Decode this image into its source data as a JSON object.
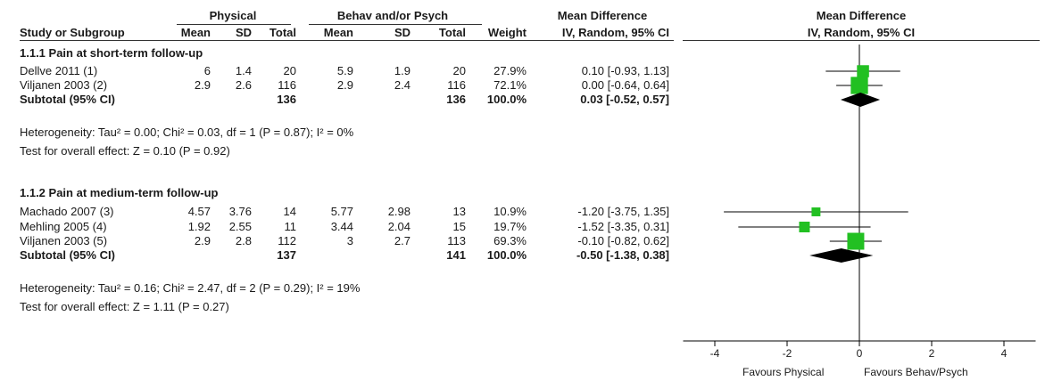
{
  "header": {
    "group1": "Physical",
    "group2": "Behav and/or Psych",
    "md_title": "Mean Difference",
    "plot_title": "Mean Difference",
    "col_study": "Study or Subgroup",
    "col_mean1": "Mean",
    "col_sd1": "SD",
    "col_total1": "Total",
    "col_mean2": "Mean",
    "col_sd2": "SD",
    "col_total2": "Total",
    "col_weight": "Weight",
    "col_ci": "IV, Random, 95% CI",
    "plot_ci": "IV, Random, 95% CI"
  },
  "rows": [
    {
      "kind": "group",
      "study": "1.1.1 Pain at short-term follow-up"
    },
    {
      "kind": "study",
      "study": "Dellve 2011 (1)",
      "m1": "6",
      "sd1": "1.4",
      "n1": "20",
      "m2": "5.9",
      "sd2": "1.9",
      "n2": "20",
      "w": "27.9%",
      "ci": "0.10 [-0.93, 1.13]"
    },
    {
      "kind": "study",
      "study": "Viljanen 2003 (2)",
      "m1": "2.9",
      "sd1": "2.6",
      "n1": "116",
      "m2": "2.9",
      "sd2": "2.4",
      "n2": "116",
      "w": "72.1%",
      "ci": "0.00 [-0.64, 0.64]"
    },
    {
      "kind": "subtotal",
      "study": "Subtotal (95% CI)",
      "m1": "",
      "sd1": "",
      "n1": "136",
      "m2": "",
      "sd2": "",
      "n2": "136",
      "w": "100.0%",
      "ci": "0.03 [-0.52, 0.57]"
    },
    {
      "kind": "note",
      "study": "Heterogeneity: Tau² = 0.00; Chi² = 0.03, df = 1 (P = 0.87); I² = 0%"
    },
    {
      "kind": "note",
      "study": "Test for overall effect: Z = 0.10 (P = 0.92)"
    },
    {
      "kind": "blank",
      "study": ""
    },
    {
      "kind": "group",
      "study": "1.1.2 Pain at medium-term follow-up"
    },
    {
      "kind": "study",
      "study": "Machado 2007 (3)",
      "m1": "4.57",
      "sd1": "3.76",
      "n1": "14",
      "m2": "5.77",
      "sd2": "2.98",
      "n2": "13",
      "w": "10.9%",
      "ci": "-1.20 [-3.75, 1.35]"
    },
    {
      "kind": "study",
      "study": "Mehling 2005 (4)",
      "m1": "1.92",
      "sd1": "2.55",
      "n1": "11",
      "m2": "3.44",
      "sd2": "2.04",
      "n2": "15",
      "w": "19.7%",
      "ci": "-1.52 [-3.35, 0.31]"
    },
    {
      "kind": "study",
      "study": "Viljanen 2003 (5)",
      "m1": "2.9",
      "sd1": "2.8",
      "n1": "112",
      "m2": "3",
      "sd2": "2.7",
      "n2": "113",
      "w": "69.3%",
      "ci": "-0.10 [-0.82, 0.62]"
    },
    {
      "kind": "subtotal",
      "study": "Subtotal (95% CI)",
      "m1": "",
      "sd1": "",
      "n1": "137",
      "m2": "",
      "sd2": "",
      "n2": "141",
      "w": "100.0%",
      "ci": "-0.50 [-1.38, 0.38]"
    },
    {
      "kind": "note",
      "study": "Heterogeneity: Tau² = 0.16; Chi² = 2.47, df = 2 (P = 0.29); I² = 19%"
    },
    {
      "kind": "note",
      "study": "Test for overall effect: Z = 1.11 (P = 0.27)"
    }
  ],
  "axis": {
    "favours_left": "Favours Physical",
    "favours_right": "Favours Behav/Psych"
  },
  "colors": {
    "marker": "#22c022",
    "line": "#000000",
    "diamond": "#000000"
  },
  "chart_data": {
    "type": "scatter",
    "xlim": [
      -5,
      5
    ],
    "ticks": [
      -4,
      -2,
      0,
      2,
      4
    ],
    "studies": [
      {
        "name": "Dellve 2011 (1)",
        "row": 1,
        "est": 0.1,
        "lo": -0.93,
        "hi": 1.13,
        "weight": 27.9
      },
      {
        "name": "Viljanen 2003 (2)",
        "row": 2,
        "est": 0.0,
        "lo": -0.64,
        "hi": 0.64,
        "weight": 72.1
      },
      {
        "name": "Machado 2007 (3)",
        "row": 8,
        "est": -1.2,
        "lo": -3.75,
        "hi": 1.35,
        "weight": 10.9
      },
      {
        "name": "Mehling 2005 (4)",
        "row": 9,
        "est": -1.52,
        "lo": -3.35,
        "hi": 0.31,
        "weight": 19.7
      },
      {
        "name": "Viljanen 2003 (5)",
        "row": 10,
        "est": -0.1,
        "lo": -0.82,
        "hi": 0.62,
        "weight": 69.3
      }
    ],
    "subtotals": [
      {
        "name": "Subtotal 1.1.1",
        "row": 3,
        "est": 0.03,
        "lo": -0.52,
        "hi": 0.57
      },
      {
        "name": "Subtotal 1.1.2",
        "row": 11,
        "est": -0.5,
        "lo": -1.38,
        "hi": 0.38
      }
    ]
  }
}
